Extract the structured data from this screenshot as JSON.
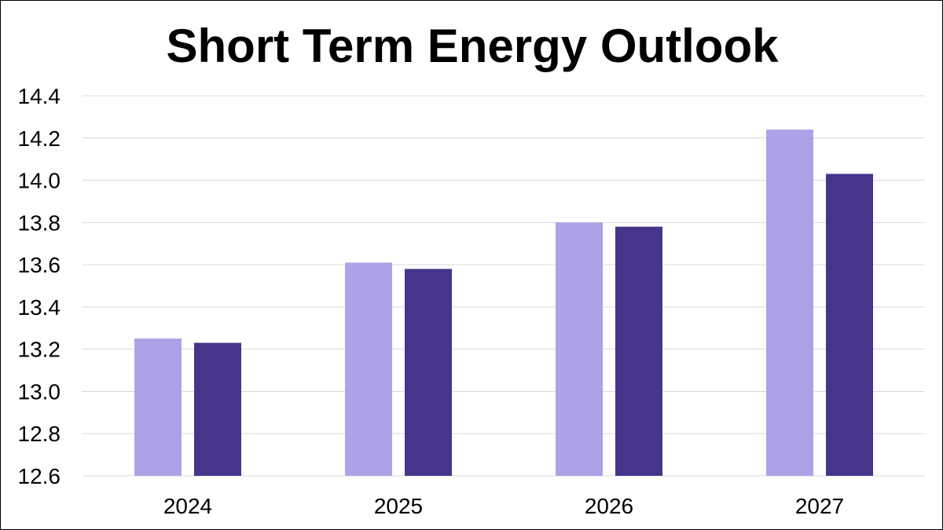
{
  "chart_data": {
    "type": "bar",
    "title": "Short Term Energy Outlook",
    "categories": [
      "2024",
      "2025",
      "2026",
      "2027"
    ],
    "series": [
      {
        "values": [
          13.25,
          13.61,
          13.8,
          14.24
        ],
        "color": "#ada2e8"
      },
      {
        "values": [
          13.23,
          13.58,
          13.78,
          14.03
        ],
        "color": "#46358a"
      }
    ],
    "ylim": [
      12.6,
      14.4
    ],
    "yticks": [
      "12.6",
      "12.8",
      "13.0",
      "13.2",
      "13.4",
      "13.6",
      "13.8",
      "14.0",
      "14.2",
      "14.4"
    ],
    "grid": true,
    "legend": "none"
  }
}
